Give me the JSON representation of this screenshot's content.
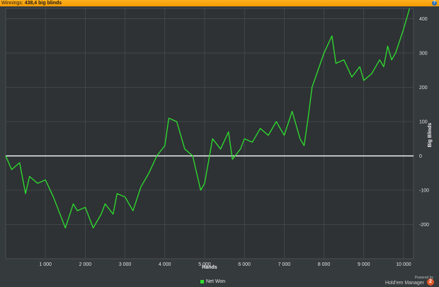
{
  "header": {
    "label": "Winnings:",
    "value": "438,4 big blinds",
    "help_icon": "question-icon",
    "help_glyph": "?"
  },
  "chart_data": {
    "type": "line",
    "xlabel": "Hands",
    "ylabel": "Big Blinds",
    "xlim": [
      0,
      10250
    ],
    "ylim": [
      -300,
      430
    ],
    "x_ticks": [
      1000,
      2000,
      3000,
      4000,
      5000,
      6000,
      7000,
      8000,
      9000,
      10000
    ],
    "x_tick_labels": [
      "1 000",
      "2 000",
      "3 000",
      "4 000",
      "5 000",
      "6 000",
      "7 000",
      "8 000",
      "9 000",
      "10 000"
    ],
    "y_ticks": [
      -200,
      -100,
      0,
      100,
      200,
      300,
      400
    ],
    "y_tick_labels": [
      "-200",
      "-100",
      "0",
      "100",
      "200",
      "300",
      "400"
    ],
    "grid": true,
    "legend": "bottom-center",
    "zero_line_color": "#ffffff",
    "series": [
      {
        "name": "Net Won",
        "color": "#2ee02e",
        "x": [
          0,
          150,
          350,
          500,
          600,
          800,
          1000,
          1200,
          1400,
          1500,
          1700,
          1800,
          2000,
          2200,
          2400,
          2500,
          2700,
          2800,
          3000,
          3200,
          3400,
          3600,
          3800,
          4000,
          4100,
          4300,
          4500,
          4700,
          4900,
          5000,
          5200,
          5400,
          5600,
          5700,
          5900,
          6000,
          6200,
          6400,
          6600,
          6800,
          7000,
          7200,
          7400,
          7500,
          7600,
          7700,
          8000,
          8200,
          8300,
          8500,
          8700,
          8900,
          9000,
          9200,
          9400,
          9500,
          9600,
          9700,
          9800,
          10000,
          10150
        ],
        "values": [
          0,
          -40,
          -20,
          -110,
          -60,
          -80,
          -70,
          -120,
          -180,
          -210,
          -140,
          -160,
          -150,
          -210,
          -170,
          -140,
          -170,
          -110,
          -120,
          -160,
          -90,
          -50,
          0,
          30,
          110,
          100,
          20,
          0,
          -100,
          -80,
          50,
          20,
          70,
          -10,
          20,
          50,
          40,
          80,
          60,
          100,
          60,
          130,
          50,
          30,
          110,
          200,
          300,
          350,
          270,
          280,
          230,
          260,
          220,
          240,
          280,
          260,
          320,
          280,
          300,
          370,
          430
        ]
      }
    ]
  },
  "footer": {
    "legend_label": "Net Won",
    "powered_by": "Powered by",
    "brand": "Hold'em Manager",
    "badge": "2"
  }
}
